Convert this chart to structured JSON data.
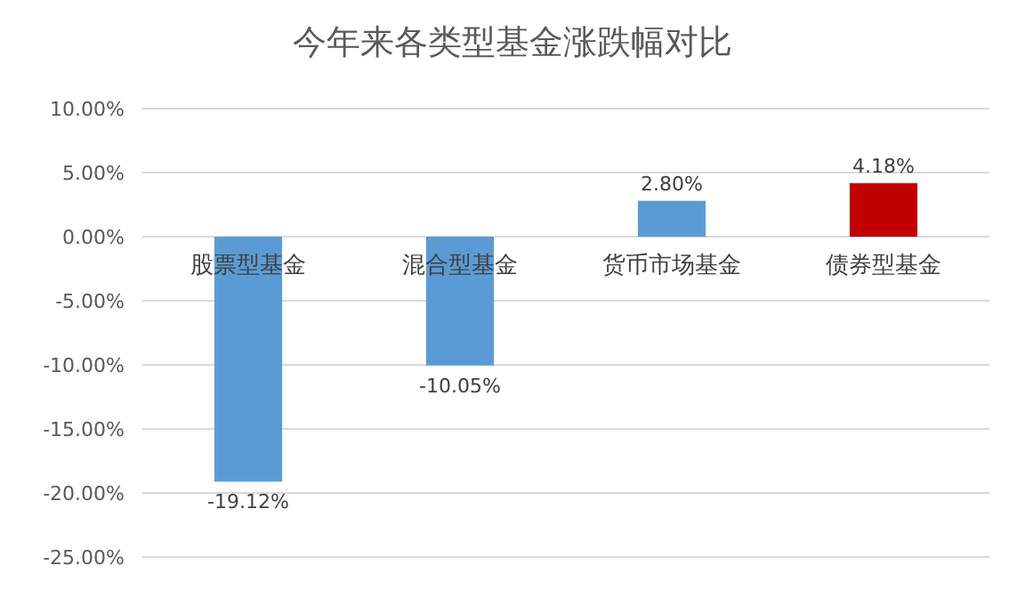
{
  "chart_data": {
    "type": "bar",
    "title": "今年来各类型基金涨跌幅对比",
    "categories": [
      "股票型基金",
      "混合型基金",
      "货币市场基金",
      "债券型基金"
    ],
    "values": [
      -19.12,
      -10.05,
      2.8,
      4.18
    ],
    "colors": [
      "#5b9bd5",
      "#5b9bd5",
      "#5b9bd5",
      "#c00000"
    ],
    "value_labels": [
      "-19.12%",
      "-10.05%",
      "2.80%",
      "4.18%"
    ],
    "ylim": [
      -25,
      10
    ],
    "yticks": [
      {
        "value": 10,
        "label": "10.00%"
      },
      {
        "value": 5,
        "label": "5.00%"
      },
      {
        "value": 0,
        "label": "0.00%"
      },
      {
        "value": -5,
        "label": "-5.00%"
      },
      {
        "value": -10,
        "label": "-10.00%"
      },
      {
        "value": -15,
        "label": "-15.00%"
      },
      {
        "value": -20,
        "label": "-20.00%"
      },
      {
        "value": -25,
        "label": "-25.00%"
      }
    ],
    "grid": "y"
  }
}
